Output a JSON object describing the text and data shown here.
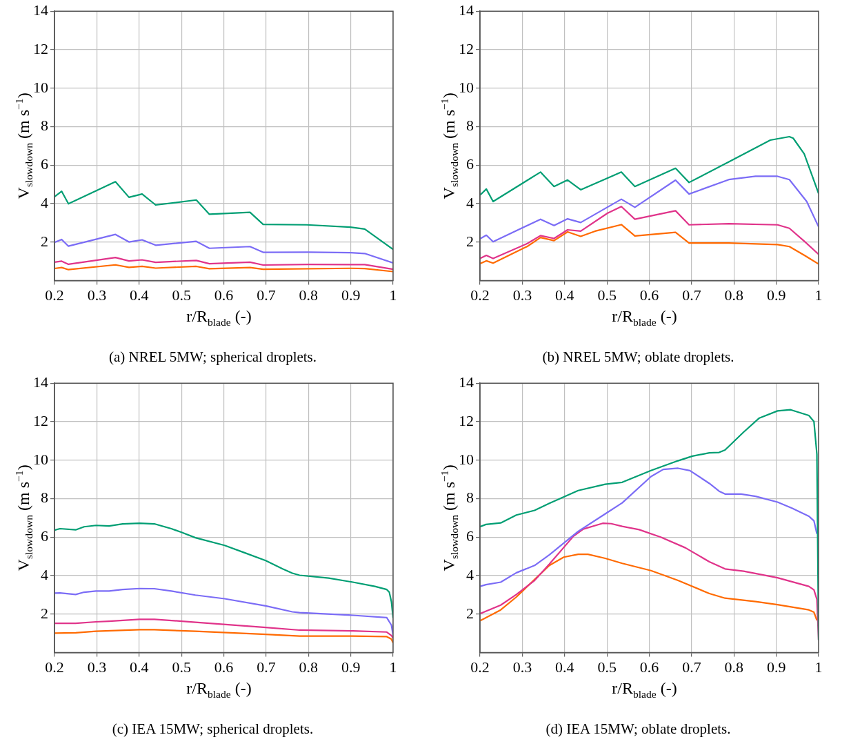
{
  "chart_data": [
    {
      "type": "line",
      "title": "(a) NREL 5MW; spherical droplets.",
      "xlabel": "r/R$_{blade}$ (-)",
      "ylabel": "V$_{slowdown}$ (m s$^{−1}$)",
      "xlim": [
        0.2,
        1
      ],
      "ylim": [
        0,
        14
      ],
      "xticks": [
        0.2,
        0.3,
        0.4,
        0.5,
        0.6,
        0.7,
        0.8,
        0.9,
        1
      ],
      "yticks": [
        2,
        4,
        6,
        8,
        10,
        12,
        14
      ],
      "grid": true,
      "legend": false,
      "series": [
        {
          "color": "#009e73",
          "x": [
            0.2,
            0.217,
            0.233,
            0.344,
            0.376,
            0.407,
            0.439,
            0.535,
            0.566,
            0.662,
            0.693,
            0.796,
            0.899,
            0.933,
            1
          ],
          "values": [
            4.36,
            4.64,
            3.99,
            5.14,
            4.33,
            4.5,
            3.93,
            4.19,
            3.45,
            3.55,
            2.92,
            2.9,
            2.78,
            2.68,
            1.62
          ]
        },
        {
          "color": "#7b6cf6",
          "x": [
            0.2,
            0.217,
            0.233,
            0.344,
            0.376,
            0.407,
            0.439,
            0.535,
            0.566,
            0.662,
            0.693,
            0.8,
            0.9,
            0.933,
            1
          ],
          "values": [
            1.99,
            2.14,
            1.79,
            2.4,
            2.01,
            2.12,
            1.84,
            2.04,
            1.68,
            1.77,
            1.47,
            1.48,
            1.45,
            1.41,
            0.92
          ]
        },
        {
          "color": "#e0338a",
          "x": [
            0.2,
            0.217,
            0.233,
            0.344,
            0.376,
            0.407,
            0.439,
            0.535,
            0.566,
            0.662,
            0.693,
            0.8,
            0.933,
            1
          ],
          "values": [
            0.96,
            1.01,
            0.85,
            1.2,
            1.02,
            1.08,
            0.95,
            1.05,
            0.88,
            0.96,
            0.81,
            0.84,
            0.83,
            0.59
          ]
        },
        {
          "color": "#ff6a00",
          "x": [
            0.2,
            0.217,
            0.233,
            0.344,
            0.376,
            0.407,
            0.439,
            0.535,
            0.566,
            0.662,
            0.693,
            0.9,
            0.933,
            1
          ],
          "values": [
            0.63,
            0.68,
            0.57,
            0.82,
            0.69,
            0.74,
            0.65,
            0.74,
            0.62,
            0.68,
            0.59,
            0.64,
            0.63,
            0.47
          ]
        }
      ]
    },
    {
      "type": "line",
      "title": "(b) NREL 5MW; oblate droplets.",
      "xlabel": "r/R$_{blade}$ (-)",
      "ylabel": "V$_{slowdown}$ (m s$^{−1}$)",
      "xlim": [
        0.2,
        1
      ],
      "ylim": [
        0,
        14
      ],
      "xticks": [
        0.2,
        0.3,
        0.4,
        0.5,
        0.6,
        0.7,
        0.8,
        0.9,
        1
      ],
      "yticks": [
        2,
        4,
        6,
        8,
        10,
        12,
        14
      ],
      "grid": true,
      "legend": false,
      "series": [
        {
          "color": "#009e73",
          "x": [
            0.2,
            0.215,
            0.231,
            0.343,
            0.375,
            0.407,
            0.438,
            0.534,
            0.566,
            0.662,
            0.694,
            0.788,
            0.886,
            0.931,
            0.94,
            0.966,
            1
          ],
          "values": [
            4.44,
            4.76,
            4.11,
            5.64,
            4.89,
            5.23,
            4.72,
            5.64,
            4.89,
            5.84,
            5.1,
            6.17,
            7.3,
            7.48,
            7.4,
            6.59,
            4.53
          ]
        },
        {
          "color": "#7b6cf6",
          "x": [
            0.2,
            0.215,
            0.231,
            0.343,
            0.375,
            0.407,
            0.438,
            0.534,
            0.566,
            0.662,
            0.694,
            0.788,
            0.851,
            0.903,
            0.931,
            0.972,
            1
          ],
          "values": [
            2.17,
            2.36,
            2.02,
            3.19,
            2.86,
            3.21,
            3.02,
            4.23,
            3.81,
            5.22,
            4.5,
            5.25,
            5.42,
            5.42,
            5.25,
            4.11,
            2.8
          ]
        },
        {
          "color": "#e0338a",
          "x": [
            0.2,
            0.215,
            0.231,
            0.312,
            0.343,
            0.375,
            0.407,
            0.438,
            0.501,
            0.534,
            0.566,
            0.662,
            0.694,
            0.788,
            0.903,
            0.931,
            0.966,
            1
          ],
          "values": [
            1.15,
            1.31,
            1.15,
            1.93,
            2.34,
            2.19,
            2.64,
            2.57,
            3.5,
            3.85,
            3.19,
            3.63,
            2.9,
            2.96,
            2.9,
            2.72,
            2.05,
            1.37
          ]
        },
        {
          "color": "#ff6a00",
          "x": [
            0.2,
            0.215,
            0.231,
            0.312,
            0.343,
            0.375,
            0.407,
            0.438,
            0.472,
            0.534,
            0.566,
            0.662,
            0.694,
            0.788,
            0.903,
            0.931,
            0.966,
            1
          ],
          "values": [
            0.88,
            1.03,
            0.91,
            1.78,
            2.24,
            2.08,
            2.53,
            2.3,
            2.57,
            2.91,
            2.32,
            2.51,
            1.95,
            1.95,
            1.87,
            1.77,
            1.32,
            0.86
          ]
        }
      ]
    },
    {
      "type": "line",
      "title": "(c) IEA 15MW; spherical droplets.",
      "xlabel": "r/R$_{blade}$ (-)",
      "ylabel": "V$_{slowdown}$ (m s$^{−1}$)",
      "xlim": [
        0.2,
        1
      ],
      "ylim": [
        0,
        14
      ],
      "xticks": [
        0.2,
        0.3,
        0.4,
        0.5,
        0.6,
        0.7,
        0.8,
        0.9,
        1
      ],
      "yticks": [
        2,
        4,
        6,
        8,
        10,
        12,
        14
      ],
      "grid": true,
      "legend": false,
      "series": [
        {
          "color": "#009e73",
          "x": [
            0.2,
            0.213,
            0.25,
            0.27,
            0.298,
            0.329,
            0.361,
            0.401,
            0.436,
            0.476,
            0.499,
            0.533,
            0.602,
            0.648,
            0.699,
            0.739,
            0.762,
            0.779,
            0.848,
            0.905,
            0.957,
            0.985,
            0.991,
            0.996,
            1
          ],
          "values": [
            6.36,
            6.44,
            6.38,
            6.54,
            6.61,
            6.58,
            6.69,
            6.72,
            6.69,
            6.44,
            6.26,
            5.97,
            5.57,
            5.2,
            4.78,
            4.35,
            4.13,
            4.02,
            3.87,
            3.66,
            3.44,
            3.28,
            3.14,
            2.65,
            1.8
          ]
        },
        {
          "color": "#7b6cf6",
          "x": [
            0.2,
            0.213,
            0.25,
            0.27,
            0.298,
            0.329,
            0.361,
            0.401,
            0.436,
            0.476,
            0.533,
            0.602,
            0.699,
            0.762,
            0.779,
            0.905,
            0.985,
            0.996,
            1
          ],
          "values": [
            3.09,
            3.1,
            3.02,
            3.14,
            3.2,
            3.2,
            3.28,
            3.33,
            3.32,
            3.2,
            2.99,
            2.8,
            2.43,
            2.12,
            2.08,
            1.94,
            1.82,
            1.43,
            0.9
          ]
        },
        {
          "color": "#e0338a",
          "x": [
            0.2,
            0.25,
            0.298,
            0.329,
            0.401,
            0.436,
            0.533,
            0.699,
            0.779,
            0.905,
            0.985,
            0.996,
            1
          ],
          "values": [
            1.52,
            1.52,
            1.6,
            1.63,
            1.73,
            1.73,
            1.58,
            1.31,
            1.17,
            1.13,
            1.07,
            0.89,
            0.75
          ]
        },
        {
          "color": "#ff6a00",
          "x": [
            0.2,
            0.25,
            0.298,
            0.401,
            0.436,
            0.533,
            0.699,
            0.779,
            0.905,
            0.985,
            0.996,
            1
          ],
          "values": [
            1.01,
            1.03,
            1.11,
            1.19,
            1.19,
            1.11,
            0.95,
            0.86,
            0.86,
            0.83,
            0.7,
            0.5
          ]
        }
      ]
    },
    {
      "type": "line",
      "title": "(d) IEA 15MW; oblate droplets.",
      "xlabel": "r/R$_{blade}$ (-)",
      "ylabel": "V$_{slowdown}$ (m s$^{−1}$)",
      "xlim": [
        0.2,
        1
      ],
      "ylim": [
        0,
        14
      ],
      "xticks": [
        0.2,
        0.3,
        0.4,
        0.5,
        0.6,
        0.7,
        0.8,
        0.9,
        1
      ],
      "yticks": [
        2,
        4,
        6,
        8,
        10,
        12,
        14
      ],
      "grid": true,
      "legend": false,
      "series": [
        {
          "color": "#009e73",
          "x": [
            0.2,
            0.214,
            0.249,
            0.286,
            0.329,
            0.364,
            0.432,
            0.496,
            0.536,
            0.604,
            0.668,
            0.702,
            0.742,
            0.765,
            0.779,
            0.823,
            0.86,
            0.903,
            0.934,
            0.977,
            0.989,
            0.996,
            1
          ],
          "values": [
            6.54,
            6.66,
            6.74,
            7.15,
            7.39,
            7.76,
            8.42,
            8.75,
            8.85,
            9.46,
            9.97,
            10.21,
            10.38,
            10.4,
            10.53,
            11.46,
            12.19,
            12.56,
            12.62,
            12.32,
            12.01,
            10.31,
            0.65
          ]
        },
        {
          "color": "#7b6cf6",
          "x": [
            0.2,
            0.214,
            0.249,
            0.286,
            0.329,
            0.364,
            0.432,
            0.496,
            0.536,
            0.604,
            0.633,
            0.668,
            0.696,
            0.742,
            0.765,
            0.779,
            0.817,
            0.851,
            0.903,
            0.937,
            0.977,
            0.989,
            0.996
          ],
          "values": [
            3.44,
            3.53,
            3.66,
            4.15,
            4.53,
            5.08,
            6.3,
            7.21,
            7.78,
            9.15,
            9.52,
            9.58,
            9.46,
            8.79,
            8.39,
            8.24,
            8.24,
            8.12,
            7.82,
            7.51,
            7.09,
            6.85,
            6.17
          ]
        },
        {
          "color": "#e0338a",
          "x": [
            0.2,
            0.249,
            0.286,
            0.329,
            0.364,
            0.421,
            0.444,
            0.49,
            0.51,
            0.536,
            0.576,
            0.628,
            0.685,
            0.742,
            0.779,
            0.823,
            0.903,
            0.977,
            0.989,
            0.996,
            1
          ],
          "values": [
            2.02,
            2.47,
            3.02,
            3.75,
            4.6,
            6.05,
            6.42,
            6.72,
            6.7,
            6.56,
            6.39,
            5.99,
            5.45,
            4.72,
            4.35,
            4.23,
            3.89,
            3.44,
            3.26,
            2.77,
            0.65
          ]
        },
        {
          "color": "#ff6a00",
          "x": [
            0.2,
            0.249,
            0.286,
            0.329,
            0.364,
            0.398,
            0.432,
            0.455,
            0.496,
            0.536,
            0.604,
            0.668,
            0.742,
            0.779,
            0.851,
            0.903,
            0.977,
            0.989,
            0.996
          ],
          "values": [
            1.65,
            2.22,
            2.89,
            3.8,
            4.53,
            4.96,
            5.11,
            5.11,
            4.9,
            4.64,
            4.26,
            3.75,
            3.07,
            2.83,
            2.65,
            2.49,
            2.22,
            2.1,
            1.68
          ]
        }
      ]
    }
  ]
}
